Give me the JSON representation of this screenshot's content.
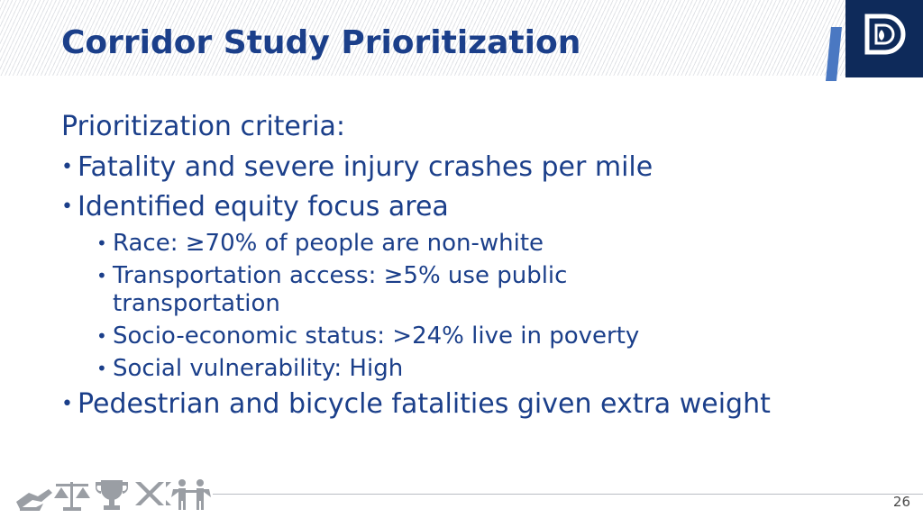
{
  "slide": {
    "title": "Corridor Study Prioritization",
    "lead": "Prioritization criteria:",
    "bullets": [
      {
        "text": "Fatality and severe injury crashes per mile"
      },
      {
        "text": "Identified equity focus area",
        "sub": [
          "Race: ≥70% of people are non-white",
          "Transportation access: ≥5% use public transportation",
          "Socio-economic status: >24% live in poverty",
          "Social vulnerability: High"
        ]
      },
      {
        "text": "Pedestrian and bicycle fatalities given extra weight"
      }
    ],
    "bullet_glyph": "•",
    "page_number": "26"
  },
  "logo": {
    "icon": "denver-d-logo-icon"
  },
  "footer": {
    "icons": [
      "handshake-icon",
      "scales-icon",
      "trophy-icon",
      "x-pattern-icon",
      "people-icon"
    ]
  },
  "colors": {
    "primary_blue": "#1b3f8a",
    "logo_navy": "#0e2a5a",
    "logo_accent": "#4a78c2",
    "footer_icon_gray": "#9a9ea4"
  }
}
